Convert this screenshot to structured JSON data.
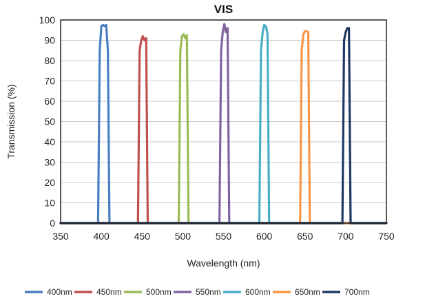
{
  "chart_data": {
    "type": "line",
    "title": "VIS",
    "xlabel": "Wavelength (nm)",
    "ylabel": "Transmission (%)",
    "xlim": [
      350,
      750
    ],
    "ylim": [
      0,
      100
    ],
    "xticks": [
      350,
      400,
      450,
      500,
      550,
      600,
      650,
      700,
      750
    ],
    "yticks": [
      0,
      10,
      20,
      30,
      40,
      50,
      60,
      70,
      80,
      90,
      100
    ],
    "grid": "horizontal",
    "legend_position": "bottom",
    "series": [
      {
        "name": "400nm",
        "color": "#4a7fc1",
        "x": [
          350,
          396,
          398,
          400,
          402,
          404,
          406,
          408,
          410,
          750
        ],
        "y": [
          0,
          0,
          85,
          97,
          97.5,
          97,
          97.5,
          85,
          0,
          0
        ]
      },
      {
        "name": "450nm",
        "color": "#c0504d",
        "x": [
          350,
          445,
          447,
          449,
          451,
          453,
          455,
          457,
          750
        ],
        "y": [
          0,
          0,
          85,
          90,
          92,
          90,
          91,
          0,
          0
        ]
      },
      {
        "name": "500nm",
        "color": "#9bbb59",
        "x": [
          350,
          495,
          497,
          499,
          501,
          503,
          505,
          507,
          750
        ],
        "y": [
          0,
          0,
          85,
          92,
          93,
          91,
          92.5,
          0,
          0
        ]
      },
      {
        "name": "550nm",
        "color": "#8064a2",
        "x": [
          350,
          545,
          547,
          549,
          551,
          553,
          555,
          557,
          750
        ],
        "y": [
          0,
          0,
          85,
          94,
          98,
          94,
          96,
          0,
          0
        ]
      },
      {
        "name": "600nm",
        "color": "#4bacc6",
        "x": [
          350,
          594,
          596,
          598,
          600,
          602,
          604,
          606,
          750
        ],
        "y": [
          0,
          0,
          85,
          94,
          97.5,
          97,
          93,
          0,
          0
        ]
      },
      {
        "name": "650nm",
        "color": "#f79646",
        "x": [
          350,
          644,
          646,
          648,
          650,
          652,
          654,
          656,
          750
        ],
        "y": [
          0,
          0,
          85,
          93,
          94.5,
          94.5,
          94,
          0,
          0
        ]
      },
      {
        "name": "700nm",
        "color": "#1f3864",
        "x": [
          350,
          696,
          698,
          700,
          702,
          704,
          706,
          750
        ],
        "y": [
          0,
          0,
          90,
          94,
          96,
          96,
          0,
          0
        ]
      }
    ]
  }
}
